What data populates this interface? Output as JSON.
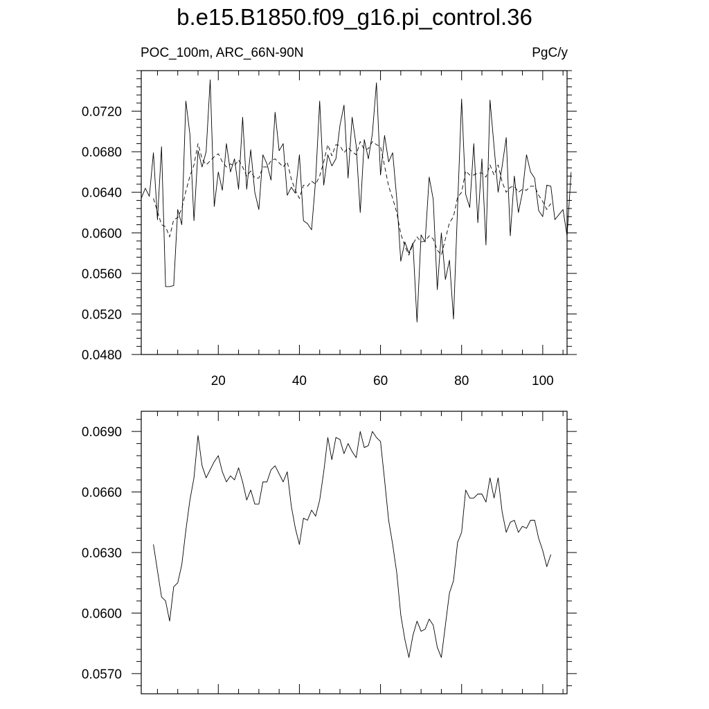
{
  "figure": {
    "title": "b.e15.B1850.f09_g16.pi_control.36",
    "left_string": "POC_100m, ARC_66N-90N",
    "right_string": "PgC/y"
  },
  "chart_data": [
    {
      "type": "line",
      "xlim": [
        1,
        106
      ],
      "ylim": [
        0.048,
        0.076
      ],
      "x_ticks": [
        20,
        40,
        60,
        80,
        100
      ],
      "x_tick_labels": [
        "20",
        "40",
        "60",
        "80",
        "100"
      ],
      "y_ticks": [
        0.048,
        0.052,
        0.056,
        0.06,
        0.064,
        0.068,
        0.072
      ],
      "y_tick_labels": [
        "0.0480",
        "0.0520",
        "0.0560",
        "0.0600",
        "0.0640",
        "0.0680",
        "0.0720"
      ],
      "grid": false,
      "series": [
        {
          "style": "solid",
          "x_start": 1,
          "values": [
            0.0634,
            0.0644,
            0.0636,
            0.0679,
            0.0613,
            0.0685,
            0.0547,
            0.0547,
            0.0548,
            0.0623,
            0.0608,
            0.073,
            0.0697,
            0.0612,
            0.0681,
            0.0665,
            0.068,
            0.0751,
            0.0626,
            0.066,
            0.0642,
            0.0688,
            0.066,
            0.0673,
            0.0643,
            0.0714,
            0.0643,
            0.0682,
            0.064,
            0.0623,
            0.0677,
            0.0668,
            0.0652,
            0.0719,
            0.0681,
            0.0688,
            0.0637,
            0.0645,
            0.0639,
            0.0677,
            0.0612,
            0.0609,
            0.0603,
            0.0652,
            0.073,
            0.0647,
            0.0677,
            0.0666,
            0.0673,
            0.0706,
            0.0726,
            0.0654,
            0.0714,
            0.0686,
            0.062,
            0.0692,
            0.0673,
            0.0698,
            0.0748,
            0.0657,
            0.0696,
            0.067,
            0.0679,
            0.0634,
            0.0572,
            0.0591,
            0.058,
            0.059,
            0.0512,
            0.0598,
            0.0591,
            0.0655,
            0.0633,
            0.0544,
            0.06,
            0.0554,
            0.0573,
            0.0515,
            0.0625,
            0.0732,
            0.0638,
            0.0625,
            0.0688,
            0.061,
            0.0673,
            0.0588,
            0.0731,
            0.0685,
            0.064,
            0.0666,
            0.0694,
            0.0597,
            0.0656,
            0.062,
            0.064,
            0.0677,
            0.066,
            0.0654,
            0.0622,
            0.0616,
            0.0647,
            0.0646,
            0.0613,
            0.0618,
            0.0623,
            0.0597,
            0.066
          ]
        },
        {
          "style": "dashed",
          "x_start": 4,
          "values": [
            0.0634,
            0.0621,
            0.0608,
            0.0606,
            0.0596,
            0.0613,
            0.0615,
            0.0624,
            0.0641,
            0.0656,
            0.0667,
            0.0688,
            0.0673,
            0.0667,
            0.0671,
            0.0675,
            0.0678,
            0.067,
            0.0665,
            0.0668,
            0.0666,
            0.0672,
            0.0665,
            0.0656,
            0.0661,
            0.0654,
            0.0654,
            0.0665,
            0.0665,
            0.0671,
            0.0673,
            0.0669,
            0.0665,
            0.067,
            0.0653,
            0.0642,
            0.0634,
            0.0647,
            0.0646,
            0.0651,
            0.0648,
            0.0656,
            0.067,
            0.0687,
            0.0676,
            0.0687,
            0.0686,
            0.0679,
            0.0684,
            0.068,
            0.0677,
            0.069,
            0.0682,
            0.0683,
            0.069,
            0.0687,
            0.0685,
            0.0666,
            0.0646,
            0.0634,
            0.062,
            0.0599,
            0.0587,
            0.0578,
            0.0589,
            0.0596,
            0.0591,
            0.0592,
            0.0597,
            0.0594,
            0.0583,
            0.0578,
            0.0594,
            0.061,
            0.0616,
            0.0635,
            0.064,
            0.0661,
            0.0657,
            0.0657,
            0.0659,
            0.0659,
            0.0655,
            0.0667,
            0.0657,
            0.0667,
            0.065,
            0.064,
            0.0645,
            0.0646,
            0.064,
            0.0643,
            0.0642,
            0.0646,
            0.0646,
            0.0637,
            0.0631,
            0.0623,
            0.0629
          ]
        }
      ]
    },
    {
      "type": "line",
      "xlim": [
        1,
        106
      ],
      "ylim": [
        0.056,
        0.07
      ],
      "x_ticks": [
        20,
        40,
        60,
        80,
        100
      ],
      "y_ticks": [
        0.057,
        0.06,
        0.063,
        0.066,
        0.069
      ],
      "y_tick_labels": [
        "0.0570",
        "0.0600",
        "0.0630",
        "0.0660",
        "0.0690"
      ],
      "grid": false,
      "series": [
        {
          "style": "solid",
          "x_start": 4,
          "values": [
            0.0634,
            0.0621,
            0.0608,
            0.0606,
            0.0596,
            0.0613,
            0.0615,
            0.0624,
            0.0641,
            0.0656,
            0.0667,
            0.0688,
            0.0673,
            0.0667,
            0.0671,
            0.0675,
            0.0678,
            0.067,
            0.0665,
            0.0668,
            0.0666,
            0.0672,
            0.0665,
            0.0656,
            0.0661,
            0.0654,
            0.0654,
            0.0665,
            0.0665,
            0.0671,
            0.0673,
            0.0669,
            0.0665,
            0.067,
            0.0653,
            0.0642,
            0.0634,
            0.0647,
            0.0646,
            0.0651,
            0.0648,
            0.0656,
            0.067,
            0.0687,
            0.0676,
            0.0687,
            0.0686,
            0.0679,
            0.0684,
            0.068,
            0.0677,
            0.069,
            0.0682,
            0.0683,
            0.069,
            0.0687,
            0.0685,
            0.0666,
            0.0646,
            0.0634,
            0.062,
            0.0599,
            0.0587,
            0.0578,
            0.0589,
            0.0596,
            0.0591,
            0.0592,
            0.0597,
            0.0594,
            0.0583,
            0.0578,
            0.0594,
            0.061,
            0.0616,
            0.0635,
            0.064,
            0.0661,
            0.0657,
            0.0657,
            0.0659,
            0.0659,
            0.0655,
            0.0667,
            0.0657,
            0.0667,
            0.065,
            0.064,
            0.0645,
            0.0646,
            0.064,
            0.0643,
            0.0642,
            0.0646,
            0.0646,
            0.0637,
            0.0631,
            0.0623,
            0.0629
          ]
        }
      ]
    }
  ]
}
